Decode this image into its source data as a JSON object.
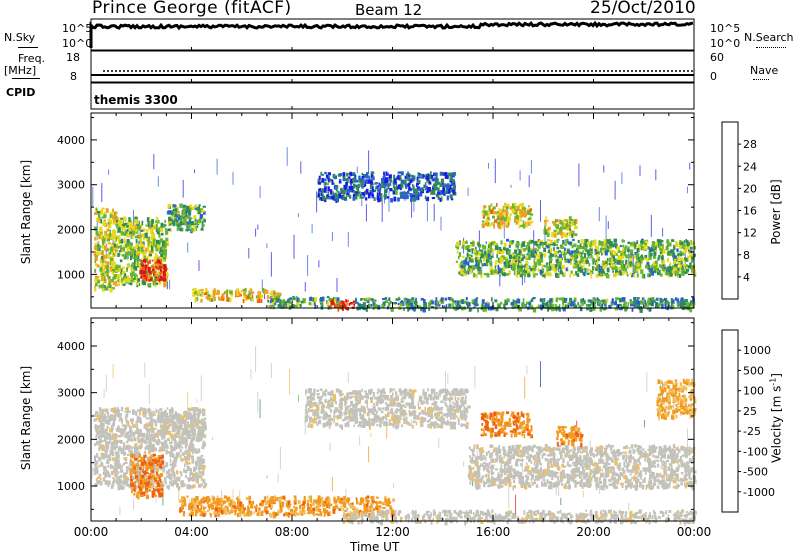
{
  "header": {
    "station": "Prince George (fitACF)",
    "beam": "Beam 12",
    "date": "25/Oct/2010"
  },
  "top_panels": {
    "nsky_label": "N.Sky",
    "nsky_ticks": [
      "10^5",
      "10^0"
    ],
    "nsearch_label": "N.Search",
    "nsearch_ticks": [
      "10^5",
      "10^0"
    ],
    "freq_label": "Freq.",
    "freq_unit": "[MHz]",
    "freq_ticks": [
      "18",
      "8"
    ],
    "nave_label": "Nave",
    "nave_ticks": [
      "60",
      "0"
    ],
    "cpid_label": "CPID",
    "cpid_value": "themis 3300"
  },
  "axes": {
    "xlabel": "Time UT",
    "x_ticks": [
      "00:00",
      "04:00",
      "08:00",
      "12:00",
      "16:00",
      "20:00",
      "00:00"
    ],
    "ylabel": "Slant Range [km]",
    "y_ticks": [
      "1000",
      "2000",
      "3000",
      "4000"
    ],
    "ylim": [
      250,
      4600
    ],
    "xlim_hours": [
      0,
      24
    ]
  },
  "colors": {
    "power": [
      "#1a1ae6",
      "#2a5fd0",
      "#2e8b57",
      "#66b532",
      "#e8d81a",
      "#f0a020",
      "#f06010",
      "#e81010"
    ],
    "velocity": [
      "#e81010",
      "#f06010",
      "#f39a1e",
      "#f0c060",
      "#c0c0b8",
      "#66c23a",
      "#2e8b57",
      "#2030b0"
    ],
    "gray": "#c3c3bb"
  },
  "chart_data": [
    {
      "type": "heatmap",
      "title": "Power",
      "colorbar_label": "Power [dB]",
      "colorbar_ticks": [
        "4",
        "8",
        "12",
        "16",
        "20",
        "24",
        "28"
      ],
      "xlabel": "Time UT",
      "ylabel": "Slant Range [km]",
      "regions": [
        {
          "t0": 0.1,
          "t1": 1.0,
          "r0": 700,
          "r1": 2500,
          "level": 0.55
        },
        {
          "t0": 1.0,
          "t1": 3.0,
          "r0": 800,
          "r1": 2300,
          "level": 0.45
        },
        {
          "t0": 1.9,
          "t1": 2.9,
          "r0": 900,
          "r1": 1350,
          "level": 0.95
        },
        {
          "t0": 3.0,
          "t1": 4.5,
          "r0": 2000,
          "r1": 2600,
          "level": 0.35
        },
        {
          "t0": 4.0,
          "t1": 7.5,
          "r0": 450,
          "r1": 700,
          "level": 0.6
        },
        {
          "t0": 7.0,
          "t1": 10.0,
          "r0": 300,
          "r1": 520,
          "level": 0.35
        },
        {
          "t0": 9.5,
          "t1": 10.5,
          "r0": 250,
          "r1": 450,
          "level": 0.95
        },
        {
          "t0": 9.0,
          "t1": 14.5,
          "r0": 2700,
          "r1": 3300,
          "level": 0.15
        },
        {
          "t0": 14.5,
          "t1": 24.0,
          "r0": 1000,
          "r1": 1800,
          "level": 0.4
        },
        {
          "t0": 15.5,
          "t1": 17.5,
          "r0": 2100,
          "r1": 2600,
          "level": 0.6
        },
        {
          "t0": 18.0,
          "t1": 19.3,
          "r0": 1900,
          "r1": 2300,
          "level": 0.55
        },
        {
          "t0": 10.5,
          "t1": 24.0,
          "r0": 250,
          "r1": 500,
          "level": 0.3
        }
      ]
    },
    {
      "type": "heatmap",
      "title": "Velocity",
      "colorbar_label": "Velocity [m s^-1]",
      "colorbar_ticks": [
        "-1000",
        "-500",
        "-100",
        "-25",
        "25",
        "100",
        "500",
        "1000"
      ],
      "xlabel": "Time UT",
      "ylabel": "Slant Range [km]",
      "regions": [
        {
          "t0": 0.1,
          "t1": 4.5,
          "r0": 1000,
          "r1": 2700,
          "level": 0.5
        },
        {
          "t0": 1.5,
          "t1": 2.8,
          "r0": 800,
          "r1": 1700,
          "level": 0.2
        },
        {
          "t0": 2.5,
          "t1": 4.5,
          "r0": 2100,
          "r1": 2600,
          "level": 0.5
        },
        {
          "t0": 3.5,
          "t1": 12.0,
          "r0": 400,
          "r1": 800,
          "level": 0.3
        },
        {
          "t0": 8.5,
          "t1": 15.0,
          "r0": 2300,
          "r1": 3100,
          "level": 0.5
        },
        {
          "t0": 15.0,
          "t1": 24.0,
          "r0": 1000,
          "r1": 1900,
          "level": 0.5
        },
        {
          "t0": 15.5,
          "t1": 17.5,
          "r0": 2100,
          "r1": 2600,
          "level": 0.25
        },
        {
          "t0": 18.5,
          "t1": 19.5,
          "r0": 1900,
          "r1": 2300,
          "level": 0.25
        },
        {
          "t0": 22.5,
          "t1": 24.0,
          "r0": 2500,
          "r1": 3300,
          "level": 0.35
        },
        {
          "t0": 10.0,
          "t1": 24.0,
          "r0": 250,
          "r1": 500,
          "level": 0.5
        }
      ]
    }
  ]
}
